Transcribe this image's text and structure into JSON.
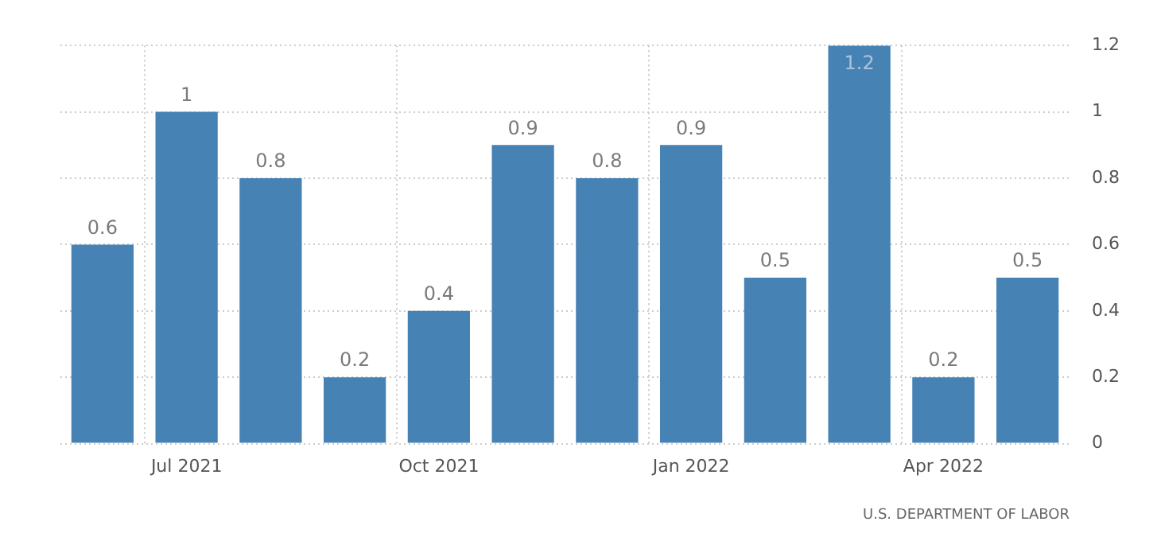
{
  "chart_data": {
    "type": "bar",
    "categories": [
      null,
      "Jul 2021",
      null,
      null,
      "Oct 2021",
      null,
      null,
      "Jan 2022",
      null,
      null,
      "Apr 2022",
      null
    ],
    "values": [
      0.6,
      1,
      0.8,
      0.2,
      0.4,
      0.9,
      0.8,
      0.9,
      0.5,
      1.2,
      0.2,
      0.5
    ],
    "color": "#4682b4",
    "ylim": [
      0,
      1.2
    ],
    "yticks": [
      0,
      0.2,
      0.4,
      0.6,
      0.8,
      1,
      1.2
    ],
    "grid": true,
    "data_labels": true,
    "annotations": [
      "U.S. DEPARTMENT OF LABOR"
    ]
  }
}
